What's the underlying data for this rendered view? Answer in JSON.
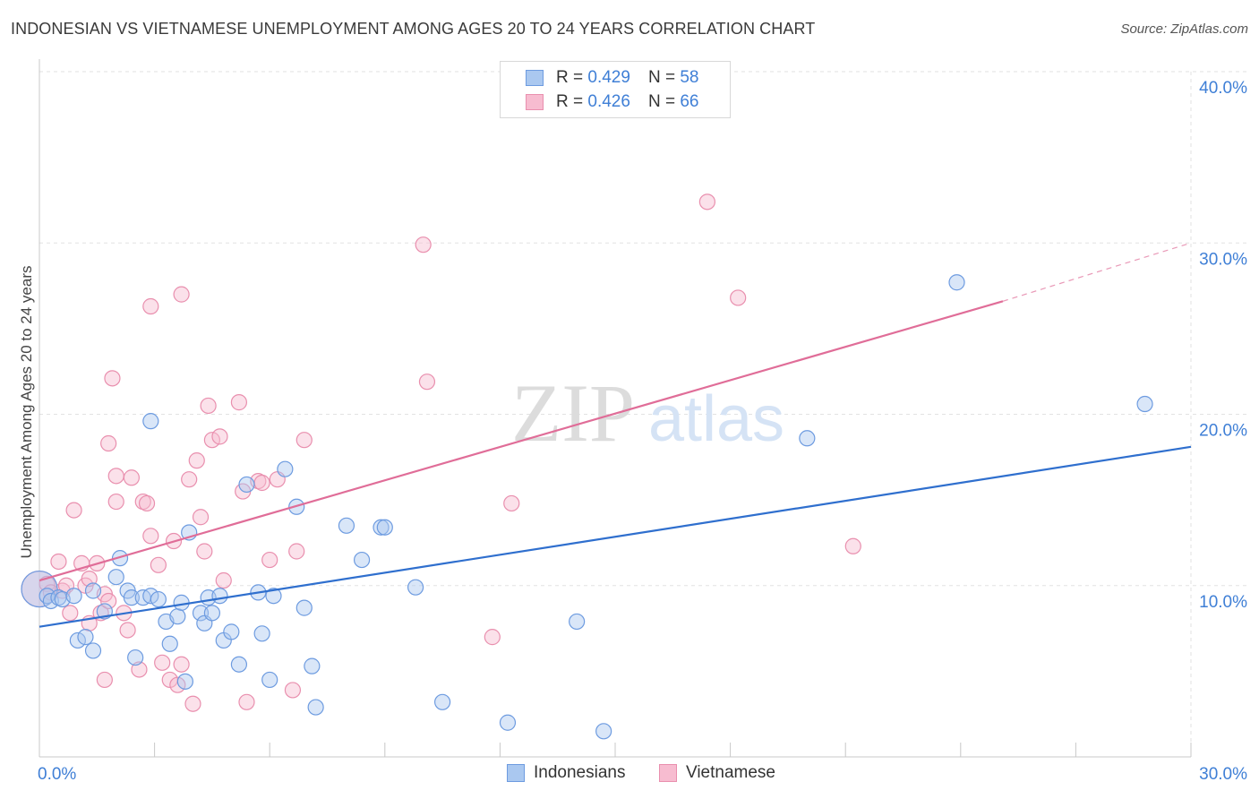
{
  "title": "INDONESIAN VS VIETNAMESE UNEMPLOYMENT AMONG AGES 20 TO 24 YEARS CORRELATION CHART",
  "source": "Source: ZipAtlas.com",
  "watermark": {
    "zip": "ZIP",
    "atlas": "atlas"
  },
  "legend_top": [
    {
      "r_label": "R =",
      "r_value": "0.429",
      "n_label": "N =",
      "n_value": "58"
    },
    {
      "r_label": "R =",
      "r_value": "0.426",
      "n_label": "N =",
      "n_value": "66"
    }
  ],
  "colors": {
    "blue_fill": "#aac8f0",
    "blue_stroke": "#6d9be0",
    "blue_line": "#2f6fce",
    "pink_fill": "#f7bcd0",
    "pink_stroke": "#e98fae",
    "pink_line": "#e06d98",
    "tick_text": "#3f7fd6"
  },
  "chart_data": {
    "type": "scatter",
    "title": "INDONESIAN VS VIETNAMESE UNEMPLOYMENT AMONG AGES 20 TO 24 YEARS CORRELATION CHART",
    "xlabel": "",
    "ylabel": "Unemployment Among Ages 20 to 24 years",
    "xlim": [
      0,
      30
    ],
    "ylim": [
      0,
      40
    ],
    "x_tick_labels": [
      "0.0%",
      "30.0%"
    ],
    "y_ticks": [
      10,
      20,
      30,
      40
    ],
    "y_tick_labels": [
      "10.0%",
      "20.0%",
      "30.0%",
      "40.0%"
    ],
    "grid": true,
    "legend_placement": "bottom",
    "series": [
      {
        "name": "Indonesians",
        "R": 0.429,
        "N": 58,
        "trend": {
          "x": [
            0,
            30
          ],
          "y": [
            7.6,
            18.1
          ]
        },
        "points": [
          [
            0.0,
            9.8,
            2
          ],
          [
            0.2,
            9.4,
            1
          ],
          [
            0.3,
            9.1,
            1
          ],
          [
            0.5,
            9.3,
            1
          ],
          [
            0.6,
            9.2,
            1
          ],
          [
            0.9,
            9.4,
            1
          ],
          [
            1.0,
            6.8,
            1
          ],
          [
            1.2,
            7.0,
            1
          ],
          [
            1.4,
            6.2,
            1
          ],
          [
            1.4,
            9.7,
            1
          ],
          [
            1.7,
            8.5,
            1
          ],
          [
            2.0,
            10.5,
            1
          ],
          [
            2.1,
            11.6,
            1
          ],
          [
            2.3,
            9.7,
            1
          ],
          [
            2.4,
            9.3,
            1
          ],
          [
            2.5,
            5.8,
            1
          ],
          [
            2.7,
            9.3,
            1
          ],
          [
            2.9,
            9.4,
            1
          ],
          [
            2.9,
            19.6,
            1
          ],
          [
            3.1,
            9.2,
            1
          ],
          [
            3.3,
            7.9,
            1
          ],
          [
            3.4,
            6.6,
            1
          ],
          [
            3.6,
            8.2,
            1
          ],
          [
            3.7,
            9.0,
            1
          ],
          [
            3.8,
            4.4,
            1
          ],
          [
            3.9,
            13.1,
            1
          ],
          [
            4.2,
            8.4,
            1
          ],
          [
            4.3,
            7.8,
            1
          ],
          [
            4.4,
            9.3,
            1
          ],
          [
            4.5,
            8.4,
            1
          ],
          [
            4.7,
            9.4,
            1
          ],
          [
            4.8,
            6.8,
            1
          ],
          [
            5.0,
            7.3,
            1
          ],
          [
            5.2,
            5.4,
            1
          ],
          [
            5.4,
            15.9,
            1
          ],
          [
            5.7,
            9.6,
            1
          ],
          [
            5.8,
            7.2,
            1
          ],
          [
            6.0,
            4.5,
            1
          ],
          [
            6.1,
            9.4,
            1
          ],
          [
            6.4,
            16.8,
            1
          ],
          [
            6.7,
            14.6,
            1
          ],
          [
            6.9,
            8.7,
            1
          ],
          [
            7.1,
            5.3,
            1
          ],
          [
            7.2,
            2.9,
            1
          ],
          [
            8.0,
            13.5,
            1
          ],
          [
            8.4,
            11.5,
            1
          ],
          [
            8.9,
            13.4,
            1
          ],
          [
            9.0,
            13.4,
            1
          ],
          [
            9.8,
            9.9,
            1
          ],
          [
            10.5,
            3.2,
            1
          ],
          [
            12.2,
            2.0,
            1
          ],
          [
            14.0,
            7.9,
            1
          ],
          [
            14.7,
            1.5,
            1
          ],
          [
            20.0,
            18.6,
            1
          ],
          [
            23.9,
            27.7,
            1
          ],
          [
            28.8,
            20.6,
            1
          ]
        ]
      },
      {
        "name": "Vietnamese",
        "R": 0.426,
        "N": 66,
        "trend": {
          "x": [
            0,
            25.1
          ],
          "y": [
            10.3,
            26.6
          ],
          "dashed_to": {
            "x": 30,
            "y": 30.0
          }
        },
        "points": [
          [
            0.0,
            9.8,
            2
          ],
          [
            0.2,
            10.1,
            1
          ],
          [
            0.3,
            9.6,
            1
          ],
          [
            0.5,
            11.4,
            1
          ],
          [
            0.6,
            9.7,
            1
          ],
          [
            0.7,
            10.0,
            1
          ],
          [
            0.8,
            8.4,
            1
          ],
          [
            0.9,
            14.4,
            1
          ],
          [
            1.1,
            11.3,
            1
          ],
          [
            1.2,
            10.0,
            1
          ],
          [
            1.3,
            10.4,
            1
          ],
          [
            1.3,
            7.8,
            1
          ],
          [
            1.5,
            11.3,
            1
          ],
          [
            1.6,
            8.4,
            1
          ],
          [
            1.7,
            9.5,
            1
          ],
          [
            1.7,
            4.5,
            1
          ],
          [
            1.8,
            9.1,
            1
          ],
          [
            1.8,
            18.3,
            1
          ],
          [
            1.9,
            22.1,
            1
          ],
          [
            2.0,
            14.9,
            1
          ],
          [
            2.0,
            16.4,
            1
          ],
          [
            2.2,
            8.4,
            1
          ],
          [
            2.3,
            7.4,
            1
          ],
          [
            2.4,
            16.3,
            1
          ],
          [
            2.6,
            5.1,
            1
          ],
          [
            2.7,
            14.9,
            1
          ],
          [
            2.8,
            14.8,
            1
          ],
          [
            2.9,
            26.3,
            1
          ],
          [
            2.9,
            12.9,
            1
          ],
          [
            3.1,
            11.2,
            1
          ],
          [
            3.2,
            5.5,
            1
          ],
          [
            3.4,
            4.5,
            1
          ],
          [
            3.5,
            12.6,
            1
          ],
          [
            3.6,
            4.2,
            1
          ],
          [
            3.7,
            5.4,
            1
          ],
          [
            3.7,
            27.0,
            1
          ],
          [
            3.9,
            16.2,
            1
          ],
          [
            4.0,
            3.1,
            1
          ],
          [
            4.1,
            17.3,
            1
          ],
          [
            4.2,
            14.0,
            1
          ],
          [
            4.3,
            12.0,
            1
          ],
          [
            4.4,
            20.5,
            1
          ],
          [
            4.5,
            18.5,
            1
          ],
          [
            4.7,
            18.7,
            1
          ],
          [
            4.8,
            10.3,
            1
          ],
          [
            5.2,
            20.7,
            1
          ],
          [
            5.3,
            15.5,
            1
          ],
          [
            5.4,
            3.2,
            1
          ],
          [
            5.7,
            16.1,
            1
          ],
          [
            5.8,
            16.0,
            1
          ],
          [
            6.0,
            11.5,
            1
          ],
          [
            6.2,
            16.2,
            1
          ],
          [
            6.6,
            3.9,
            1
          ],
          [
            6.7,
            12.0,
            1
          ],
          [
            6.9,
            18.5,
            1
          ],
          [
            10.0,
            29.9,
            1
          ],
          [
            10.1,
            21.9,
            1
          ],
          [
            11.8,
            7.0,
            1
          ],
          [
            12.3,
            14.8,
            1
          ],
          [
            17.4,
            32.4,
            1
          ],
          [
            18.2,
            26.8,
            1
          ],
          [
            21.2,
            12.3,
            1
          ]
        ]
      }
    ]
  }
}
